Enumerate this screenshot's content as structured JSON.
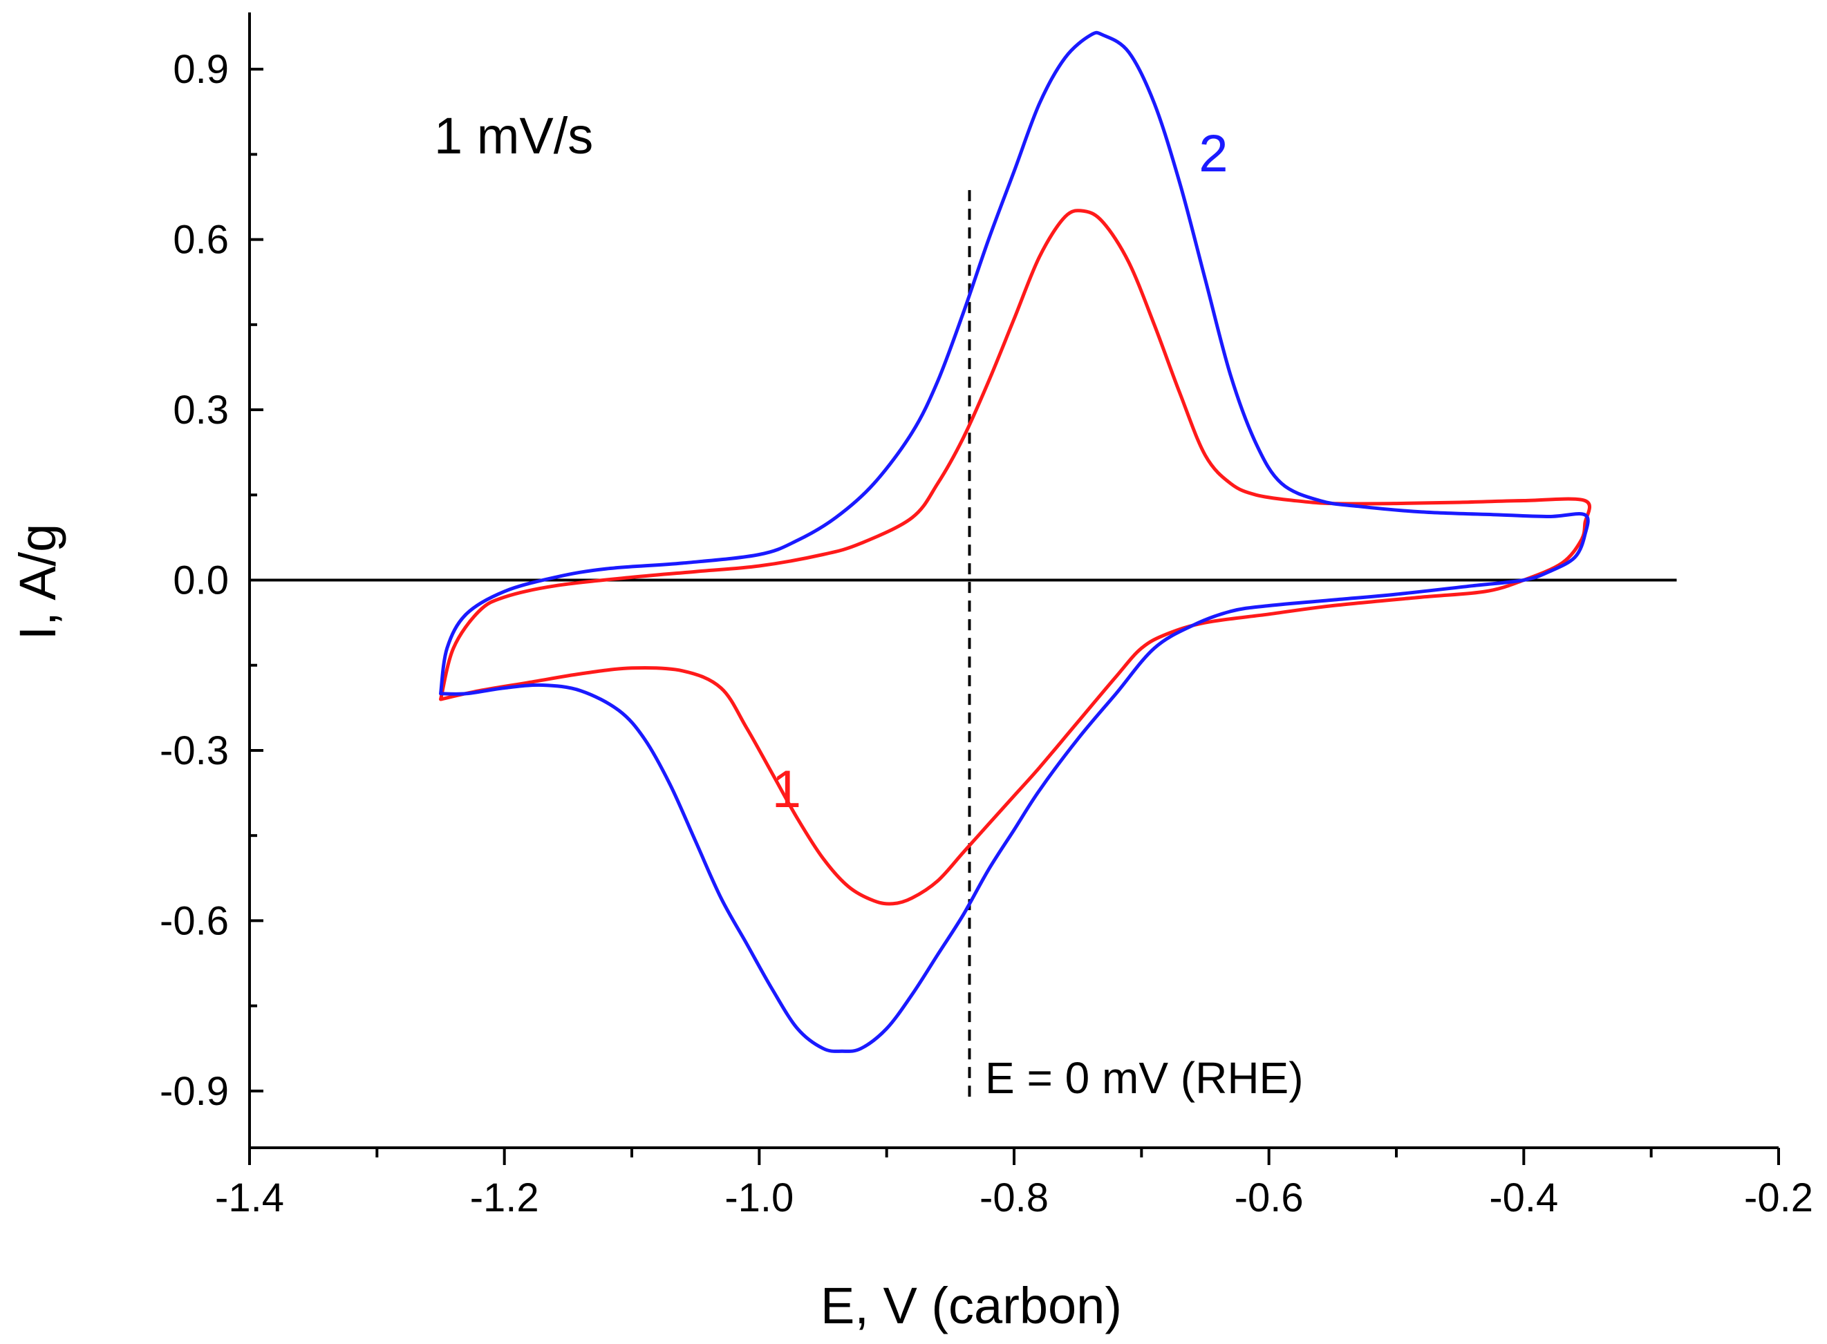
{
  "chart_data": {
    "type": "line",
    "title": "",
    "xlabel": "E, V (carbon)",
    "ylabel": "I, A/g",
    "xlim": [
      -1.4,
      -0.2
    ],
    "ylim": [
      -1.0,
      1.0
    ],
    "x_ticks": [
      -1.4,
      -1.2,
      -1.0,
      -0.8,
      -0.6,
      -0.4,
      -0.2
    ],
    "x_tick_labels": [
      "-1.4",
      "-1.2",
      "-1.0",
      "-0.8",
      "-0.6",
      "-0.4",
      "-0.2"
    ],
    "y_ticks": [
      -0.9,
      -0.6,
      -0.3,
      0.0,
      0.3,
      0.6,
      0.9
    ],
    "y_tick_labels": [
      "-0.9",
      "-0.6",
      "-0.3",
      "0.0",
      "0.3",
      "0.6",
      "0.9"
    ],
    "scan_rate_label": "1 mV/s",
    "reference_line": {
      "x": -0.835,
      "y_range": [
        -0.91,
        0.69
      ],
      "label": "E = 0 mV (RHE)",
      "style": "dashed"
    },
    "zero_line": {
      "y": 0.0,
      "x_range": [
        -1.4,
        -0.28
      ]
    },
    "series": [
      {
        "name": "1",
        "color": "#ff1a1a",
        "label_at": [
          -0.99,
          -0.4
        ],
        "points": [
          [
            -1.25,
            -0.21
          ],
          [
            -1.24,
            -0.12
          ],
          [
            -1.22,
            -0.055
          ],
          [
            -1.2,
            -0.03
          ],
          [
            -1.16,
            -0.01
          ],
          [
            -1.1,
            0.005
          ],
          [
            -1.05,
            0.015
          ],
          [
            -1.0,
            0.025
          ],
          [
            -0.95,
            0.045
          ],
          [
            -0.92,
            0.065
          ],
          [
            -0.88,
            0.11
          ],
          [
            -0.86,
            0.17
          ],
          [
            -0.84,
            0.25
          ],
          [
            -0.82,
            0.35
          ],
          [
            -0.8,
            0.46
          ],
          [
            -0.78,
            0.57
          ],
          [
            -0.76,
            0.64
          ],
          [
            -0.745,
            0.65
          ],
          [
            -0.73,
            0.63
          ],
          [
            -0.71,
            0.56
          ],
          [
            -0.69,
            0.45
          ],
          [
            -0.67,
            0.33
          ],
          [
            -0.65,
            0.22
          ],
          [
            -0.63,
            0.17
          ],
          [
            -0.61,
            0.15
          ],
          [
            -0.58,
            0.14
          ],
          [
            -0.55,
            0.135
          ],
          [
            -0.5,
            0.135
          ],
          [
            -0.45,
            0.137
          ],
          [
            -0.4,
            0.14
          ],
          [
            -0.352,
            0.14
          ],
          [
            -0.352,
            0.1
          ],
          [
            -0.355,
            0.07
          ],
          [
            -0.37,
            0.03
          ],
          [
            -0.4,
            0.0
          ],
          [
            -0.43,
            -0.02
          ],
          [
            -0.48,
            -0.03
          ],
          [
            -0.55,
            -0.045
          ],
          [
            -0.6,
            -0.06
          ],
          [
            -0.65,
            -0.075
          ],
          [
            -0.68,
            -0.095
          ],
          [
            -0.7,
            -0.12
          ],
          [
            -0.72,
            -0.17
          ],
          [
            -0.75,
            -0.25
          ],
          [
            -0.78,
            -0.33
          ],
          [
            -0.8,
            -0.38
          ],
          [
            -0.82,
            -0.43
          ],
          [
            -0.84,
            -0.48
          ],
          [
            -0.86,
            -0.53
          ],
          [
            -0.88,
            -0.56
          ],
          [
            -0.895,
            -0.57
          ],
          [
            -0.91,
            -0.565
          ],
          [
            -0.93,
            -0.54
          ],
          [
            -0.95,
            -0.49
          ],
          [
            -0.97,
            -0.42
          ],
          [
            -0.99,
            -0.34
          ],
          [
            -1.01,
            -0.26
          ],
          [
            -1.03,
            -0.19
          ],
          [
            -1.06,
            -0.16
          ],
          [
            -1.1,
            -0.155
          ],
          [
            -1.14,
            -0.165
          ],
          [
            -1.18,
            -0.18
          ],
          [
            -1.22,
            -0.195
          ],
          [
            -1.25,
            -0.21
          ]
        ]
      },
      {
        "name": "2",
        "color": "#1a1aff",
        "label_at": [
          -0.655,
          0.72
        ],
        "points": [
          [
            -1.25,
            -0.2
          ],
          [
            -1.245,
            -0.12
          ],
          [
            -1.23,
            -0.06
          ],
          [
            -1.2,
            -0.02
          ],
          [
            -1.16,
            0.005
          ],
          [
            -1.12,
            0.02
          ],
          [
            -1.06,
            0.03
          ],
          [
            -1.0,
            0.045
          ],
          [
            -0.97,
            0.07
          ],
          [
            -0.94,
            0.11
          ],
          [
            -0.91,
            0.17
          ],
          [
            -0.88,
            0.26
          ],
          [
            -0.86,
            0.35
          ],
          [
            -0.84,
            0.47
          ],
          [
            -0.82,
            0.6
          ],
          [
            -0.8,
            0.72
          ],
          [
            -0.78,
            0.84
          ],
          [
            -0.76,
            0.92
          ],
          [
            -0.74,
            0.96
          ],
          [
            -0.73,
            0.96
          ],
          [
            -0.71,
            0.93
          ],
          [
            -0.69,
            0.84
          ],
          [
            -0.67,
            0.7
          ],
          [
            -0.65,
            0.53
          ],
          [
            -0.63,
            0.36
          ],
          [
            -0.61,
            0.24
          ],
          [
            -0.59,
            0.17
          ],
          [
            -0.56,
            0.14
          ],
          [
            -0.53,
            0.13
          ],
          [
            -0.48,
            0.12
          ],
          [
            -0.42,
            0.115
          ],
          [
            -0.38,
            0.112
          ],
          [
            -0.352,
            0.115
          ],
          [
            -0.352,
            0.08
          ],
          [
            -0.36,
            0.04
          ],
          [
            -0.38,
            0.015
          ],
          [
            -0.4,
            0.0
          ],
          [
            -0.44,
            -0.01
          ],
          [
            -0.5,
            -0.025
          ],
          [
            -0.55,
            -0.035
          ],
          [
            -0.6,
            -0.045
          ],
          [
            -0.63,
            -0.055
          ],
          [
            -0.66,
            -0.08
          ],
          [
            -0.69,
            -0.12
          ],
          [
            -0.72,
            -0.2
          ],
          [
            -0.75,
            -0.28
          ],
          [
            -0.78,
            -0.37
          ],
          [
            -0.8,
            -0.44
          ],
          [
            -0.82,
            -0.51
          ],
          [
            -0.84,
            -0.59
          ],
          [
            -0.86,
            -0.66
          ],
          [
            -0.88,
            -0.73
          ],
          [
            -0.9,
            -0.79
          ],
          [
            -0.92,
            -0.825
          ],
          [
            -0.935,
            -0.83
          ],
          [
            -0.95,
            -0.825
          ],
          [
            -0.97,
            -0.79
          ],
          [
            -0.99,
            -0.72
          ],
          [
            -1.01,
            -0.64
          ],
          [
            -1.03,
            -0.56
          ],
          [
            -1.05,
            -0.46
          ],
          [
            -1.07,
            -0.36
          ],
          [
            -1.09,
            -0.28
          ],
          [
            -1.11,
            -0.23
          ],
          [
            -1.14,
            -0.195
          ],
          [
            -1.17,
            -0.185
          ],
          [
            -1.2,
            -0.19
          ],
          [
            -1.23,
            -0.2
          ],
          [
            -1.25,
            -0.2
          ]
        ]
      }
    ]
  }
}
